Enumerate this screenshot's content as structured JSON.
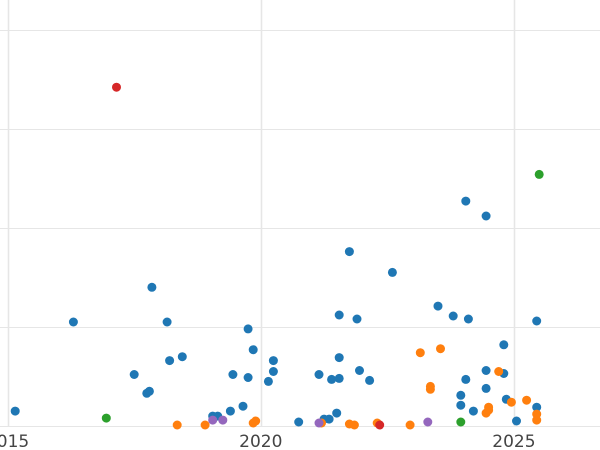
{
  "chart_data": {
    "type": "scatter",
    "title": "",
    "xlabel": "",
    "ylabel": "",
    "xlim": [
      2014.85,
      2026.7
    ],
    "ylim": [
      0,
      4.3
    ],
    "grid": true,
    "x_ticks": [
      2015,
      2020,
      2025
    ],
    "x_tick_labels": [
      "2015",
      "2020",
      "2025"
    ],
    "y_gridlines": [
      0,
      1,
      2,
      3,
      4
    ],
    "series": [
      {
        "color": "#1f77b4",
        "points": [
          [
            2015.15,
            0.15
          ],
          [
            2016.3,
            1.05
          ],
          [
            2017.5,
            0.52
          ],
          [
            2017.75,
            0.33
          ],
          [
            2017.8,
            0.35
          ],
          [
            2017.85,
            1.4
          ],
          [
            2018.15,
            1.05
          ],
          [
            2018.2,
            0.66
          ],
          [
            2018.45,
            0.7
          ],
          [
            2019.05,
            0.1
          ],
          [
            2019.15,
            0.1
          ],
          [
            2019.4,
            0.15
          ],
          [
            2019.45,
            0.52
          ],
          [
            2019.65,
            0.2
          ],
          [
            2019.75,
            0.49
          ],
          [
            2019.75,
            0.98
          ],
          [
            2019.85,
            0.77
          ],
          [
            2020.15,
            0.45
          ],
          [
            2020.25,
            0.55
          ],
          [
            2020.25,
            0.66
          ],
          [
            2020.75,
            0.04
          ],
          [
            2021.15,
            0.52
          ],
          [
            2021.25,
            0.07
          ],
          [
            2021.35,
            0.07
          ],
          [
            2021.4,
            0.47
          ],
          [
            2021.5,
            0.13
          ],
          [
            2021.55,
            0.48
          ],
          [
            2021.55,
            0.69
          ],
          [
            2021.55,
            1.12
          ],
          [
            2021.75,
            1.76
          ],
          [
            2021.9,
            1.08
          ],
          [
            2021.95,
            0.56
          ],
          [
            2022.15,
            0.46
          ],
          [
            2022.6,
            1.55
          ],
          [
            2023.5,
            1.21
          ],
          [
            2023.8,
            1.11
          ],
          [
            2023.95,
            0.21
          ],
          [
            2023.95,
            0.31
          ],
          [
            2024.05,
            0.47
          ],
          [
            2024.05,
            2.27
          ],
          [
            2024.1,
            1.08
          ],
          [
            2024.2,
            0.15
          ],
          [
            2024.45,
            0.38
          ],
          [
            2024.45,
            0.56
          ],
          [
            2024.45,
            2.12
          ],
          [
            2024.8,
            0.53
          ],
          [
            2024.8,
            0.82
          ],
          [
            2024.85,
            0.27
          ],
          [
            2025.05,
            0.05
          ],
          [
            2025.45,
            0.19
          ],
          [
            2025.45,
            1.06
          ]
        ]
      },
      {
        "color": "#ff7f0e",
        "points": [
          [
            2018.35,
            0.01
          ],
          [
            2018.9,
            0.01
          ],
          [
            2019.85,
            0.03
          ],
          [
            2019.9,
            0.05
          ],
          [
            2021.2,
            0.03
          ],
          [
            2021.75,
            0.02
          ],
          [
            2021.85,
            0.01
          ],
          [
            2022.3,
            0.03
          ],
          [
            2022.95,
            0.01
          ],
          [
            2023.15,
            0.74
          ],
          [
            2023.35,
            0.37
          ],
          [
            2023.35,
            0.4
          ],
          [
            2023.55,
            0.78
          ],
          [
            2024.45,
            0.13
          ],
          [
            2024.5,
            0.19
          ],
          [
            2024.5,
            0.16
          ],
          [
            2024.7,
            0.55
          ],
          [
            2024.95,
            0.24
          ],
          [
            2025.25,
            0.26
          ],
          [
            2025.45,
            0.06
          ],
          [
            2025.45,
            0.12
          ]
        ]
      },
      {
        "color": "#2ca02c",
        "points": [
          [
            2016.95,
            0.08
          ],
          [
            2023.95,
            0.04
          ],
          [
            2025.5,
            2.54
          ]
        ]
      },
      {
        "color": "#d62728",
        "points": [
          [
            2017.15,
            3.42
          ],
          [
            2022.35,
            0.01
          ]
        ]
      },
      {
        "color": "#9467bd",
        "points": [
          [
            2019.05,
            0.06
          ],
          [
            2019.25,
            0.06
          ],
          [
            2021.15,
            0.03
          ],
          [
            2023.3,
            0.04
          ]
        ]
      }
    ]
  }
}
